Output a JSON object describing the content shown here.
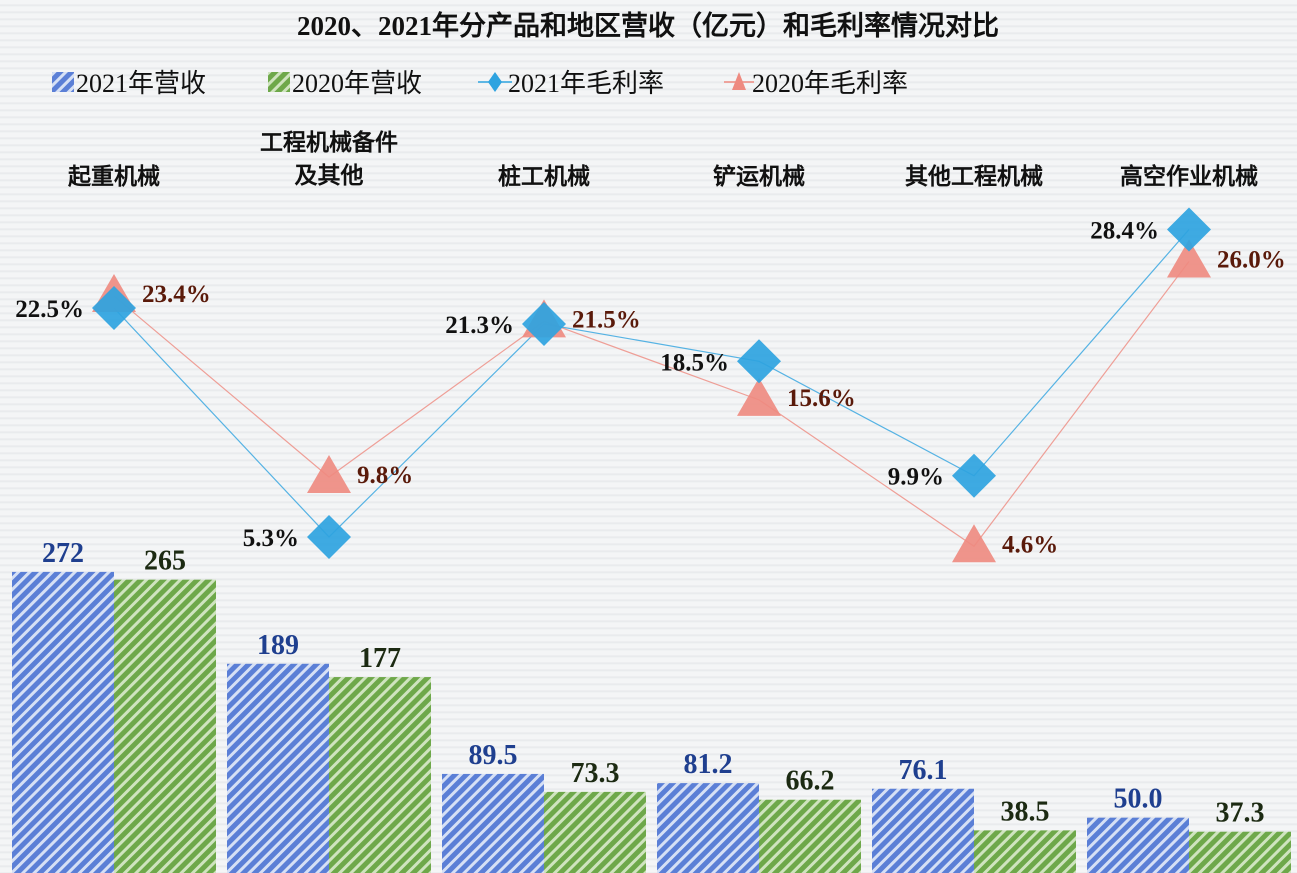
{
  "chart_data": {
    "type": "bar",
    "title": "2020、2021年分产品和地区营收（亿元）和毛利率情况对比",
    "categories": [
      "起重机械",
      "工程机械备件\n及其他",
      "桩工机械",
      "铲运机械",
      "其他工程机械",
      "高空作业机械"
    ],
    "series": [
      {
        "name": "2021年营收",
        "type": "bar",
        "values": [
          272,
          189,
          89.5,
          81.2,
          76.1,
          50.0
        ],
        "labels": [
          "272",
          "189",
          "89.5",
          "81.2",
          "76.1",
          "50.0"
        ],
        "color": "#5b7fd6",
        "pattern": "hatched"
      },
      {
        "name": "2020年营收",
        "type": "bar",
        "values": [
          265,
          177,
          73.3,
          66.2,
          38.5,
          37.3
        ],
        "labels": [
          "265",
          "177",
          "73.3",
          "66.2",
          "38.5",
          "37.3"
        ],
        "color": "#6ea84a",
        "pattern": "hatched"
      },
      {
        "name": "2021年毛利率",
        "type": "line",
        "marker": "diamond",
        "values": [
          22.5,
          5.3,
          21.3,
          18.5,
          9.9,
          28.4
        ],
        "labels": [
          "22.5%",
          "5.3%",
          "21.3%",
          "18.5%",
          "9.9%",
          "28.4%"
        ],
        "color": "#2ea3e0"
      },
      {
        "name": "2020年毛利率",
        "type": "line",
        "marker": "triangle",
        "values": [
          23.4,
          9.8,
          21.5,
          15.6,
          4.6,
          26.0
        ],
        "labels": [
          "23.4%",
          "9.8%",
          "21.5%",
          "15.6%",
          "4.6%",
          "26.0%"
        ],
        "color": "#ee8a80"
      }
    ],
    "legend": "top",
    "grid": false,
    "label_colors": {
      "bar2021": "#1f3f8f",
      "bar2020": "#1c2a12",
      "m2021": "#111111",
      "m2020": "#5a1a0a"
    }
  }
}
